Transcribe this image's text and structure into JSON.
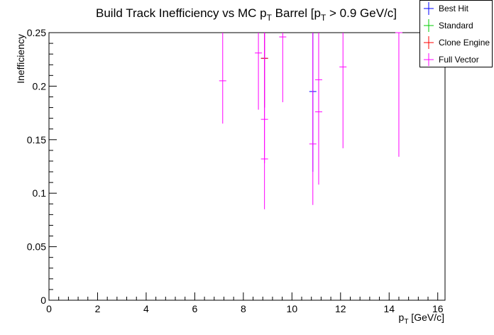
{
  "chart_data": {
    "type": "scatter",
    "title_main": "Build Track Inefficiency vs MC p",
    "title_sub": "T",
    "title_rest": " Barrel [p",
    "title_sub2": "T",
    "title_end": " > 0.9 GeV/c]",
    "xlabel_main": "p",
    "xlabel_sub": "T",
    "xlabel_rest": " [GeV/c]",
    "ylabel": "Inefficiency",
    "xlim": [
      0,
      16.3
    ],
    "ylim": [
      0,
      0.25
    ],
    "xticks": [
      0,
      2,
      4,
      6,
      8,
      10,
      12,
      14,
      16
    ],
    "xtick_labels": [
      "0",
      "2",
      "4",
      "6",
      "8",
      "10",
      "12",
      "14",
      "16"
    ],
    "yticks": [
      0,
      0.05,
      0.1,
      0.15,
      0.2,
      0.25
    ],
    "ytick_labels": [
      "0",
      "0.05",
      "0.1",
      "0.15",
      "0.2",
      "0.25"
    ],
    "series": [
      {
        "name": "Best Hit",
        "color": "#0000ff",
        "points": [
          {
            "x": 8.87,
            "y": 0.226,
            "ylo": 0.18,
            "yhi": 0.25
          },
          {
            "x": 10.86,
            "y": 0.195,
            "ylo": 0.12,
            "yhi": 0.25
          }
        ]
      },
      {
        "name": "Standard",
        "color": "#00cc00",
        "points": []
      },
      {
        "name": "Clone Engine",
        "color": "#ff0000",
        "points": [
          {
            "x": 8.87,
            "y": 0.226,
            "ylo": 0.18,
            "yhi": 0.25
          }
        ]
      },
      {
        "name": "Full Vector",
        "color": "#ff00ff",
        "points": [
          {
            "x": 7.15,
            "y": 0.205,
            "ylo": 0.165,
            "yhi": 0.25
          },
          {
            "x": 8.62,
            "y": 0.231,
            "ylo": 0.178,
            "yhi": 0.25
          },
          {
            "x": 8.87,
            "y": 0.169,
            "ylo": 0.128,
            "yhi": 0.25
          },
          {
            "x": 8.87,
            "y": 0.132,
            "ylo": 0.085,
            "yhi": 0.25
          },
          {
            "x": 9.62,
            "y": 0.246,
            "ylo": 0.185,
            "yhi": 0.25
          },
          {
            "x": 10.86,
            "y": 0.146,
            "ylo": 0.089,
            "yhi": 0.25
          },
          {
            "x": 11.1,
            "y": 0.206,
            "ylo": 0.15,
            "yhi": 0.25
          },
          {
            "x": 11.1,
            "y": 0.176,
            "ylo": 0.108,
            "yhi": 0.25
          },
          {
            "x": 12.1,
            "y": 0.218,
            "ylo": 0.142,
            "yhi": 0.25
          },
          {
            "x": 14.4,
            "y": 0.25,
            "ylo": 0.134,
            "yhi": 0.25
          }
        ]
      }
    ],
    "legend_position": "top-right"
  }
}
